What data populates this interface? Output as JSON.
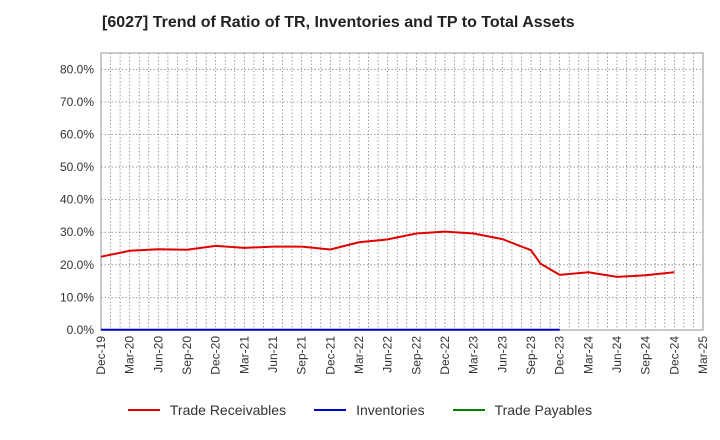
{
  "chart_data": {
    "type": "line",
    "title": "[6027]  Trend of Ratio of TR, Inventories and TP to Total Assets",
    "xlabel": "",
    "ylabel": "",
    "ylim": [
      0,
      85
    ],
    "y_ticks": [
      "0.0%",
      "10.0%",
      "20.0%",
      "30.0%",
      "40.0%",
      "50.0%",
      "60.0%",
      "70.0%",
      "80.0%"
    ],
    "y_tick_values": [
      0,
      10,
      20,
      30,
      40,
      50,
      60,
      70,
      80
    ],
    "x_ticks": [
      "Dec-19",
      "Mar-20",
      "Jun-20",
      "Sep-20",
      "Dec-20",
      "Mar-21",
      "Jun-21",
      "Sep-21",
      "Dec-21",
      "Mar-22",
      "Jun-22",
      "Sep-22",
      "Dec-22",
      "Mar-23",
      "Jun-23",
      "Sep-23",
      "Dec-23",
      "Mar-24",
      "Jun-24",
      "Sep-24",
      "Dec-24",
      "Mar-25"
    ],
    "grid": true,
    "legend_position": "bottom",
    "x": [
      "Dec-19",
      "Mar-20",
      "Jun-20",
      "Sep-20",
      "Dec-20",
      "Mar-21",
      "Jun-21",
      "Sep-21",
      "Dec-21",
      "Mar-22",
      "Jun-22",
      "Sep-22",
      "Dec-22",
      "Mar-23",
      "Jun-23",
      "Sep-23",
      "Oct-23",
      "Dec-23",
      "Mar-24",
      "Jun-24",
      "Sep-24",
      "Dec-24"
    ],
    "series": [
      {
        "name": "Trade Receivables",
        "color": "#e00000",
        "x": [
          "Dec-19",
          "Mar-20",
          "Jun-20",
          "Sep-20",
          "Dec-20",
          "Mar-21",
          "Jun-21",
          "Sep-21",
          "Dec-21",
          "Mar-22",
          "Jun-22",
          "Sep-22",
          "Dec-22",
          "Mar-23",
          "Jun-23",
          "Sep-23",
          "Oct-23",
          "Dec-23",
          "Mar-24",
          "Jun-24",
          "Sep-24",
          "Dec-24"
        ],
        "values": [
          22.5,
          24.3,
          24.8,
          24.6,
          25.8,
          25.2,
          25.6,
          25.6,
          24.7,
          26.9,
          27.8,
          29.6,
          30.2,
          29.6,
          27.9,
          24.5,
          20.3,
          16.9,
          17.7,
          16.3,
          16.8,
          17.7
        ]
      },
      {
        "name": "Inventories",
        "color": "#0000cc",
        "x": [
          "Dec-19",
          "Mar-20",
          "Jun-20",
          "Sep-20",
          "Dec-20",
          "Mar-21",
          "Jun-21",
          "Sep-21",
          "Dec-21",
          "Mar-22",
          "Jun-22",
          "Sep-22",
          "Dec-22",
          "Mar-23",
          "Jun-23",
          "Sep-23",
          "Dec-23"
        ],
        "values": [
          0.1,
          0.1,
          0.1,
          0.1,
          0.1,
          0.1,
          0.1,
          0.1,
          0.1,
          0.1,
          0.1,
          0.1,
          0.1,
          0.1,
          0.1,
          0.1,
          0.1
        ]
      },
      {
        "name": "Trade Payables",
        "color": "#008000",
        "x": [],
        "values": []
      }
    ]
  }
}
